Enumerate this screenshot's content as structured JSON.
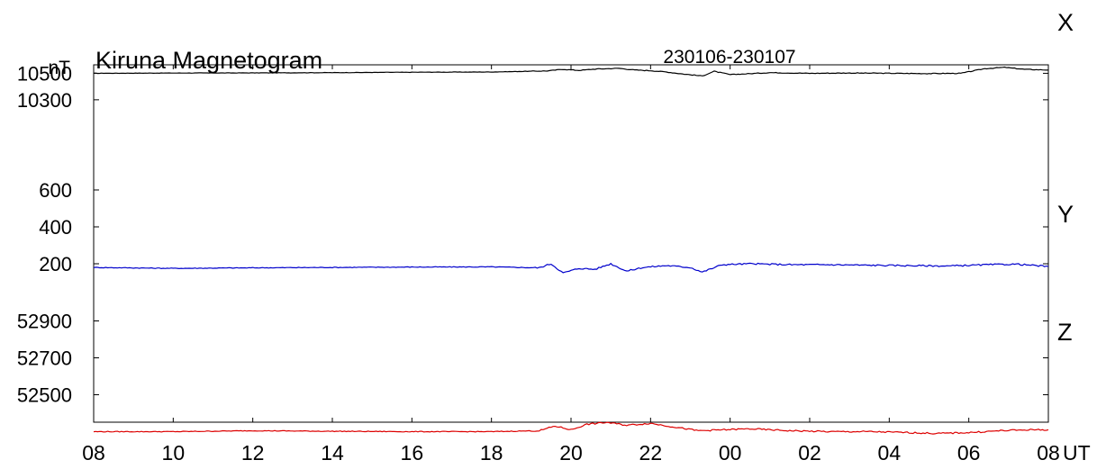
{
  "chart_data": {
    "type": "line",
    "title": "Kiruna Magnetogram",
    "date_range": "230106-230107",
    "unit_label": "nT",
    "x_unit_label": "UT",
    "x_tick_labels": [
      "08",
      "10",
      "12",
      "14",
      "16",
      "18",
      "20",
      "22",
      "00",
      "02",
      "04",
      "06",
      "08"
    ],
    "x_range_hours": [
      0,
      24
    ],
    "grid": false,
    "series": [
      {
        "name": "X",
        "color": "#000000",
        "tick_labels": [
          "10500",
          "10300"
        ],
        "tick_values": [
          10500,
          10300
        ],
        "ylim": [
          10000,
          10700
        ],
        "points": [
          [
            0,
            10500
          ],
          [
            2,
            10502
          ],
          [
            4,
            10503
          ],
          [
            6,
            10505
          ],
          [
            8,
            10508
          ],
          [
            10,
            10510
          ],
          [
            11.4,
            10518
          ],
          [
            11.8,
            10530
          ],
          [
            12.2,
            10522
          ],
          [
            12.6,
            10532
          ],
          [
            13.2,
            10538
          ],
          [
            13.6,
            10525
          ],
          [
            14.0,
            10520
          ],
          [
            14.4,
            10510
          ],
          [
            14.8,
            10495
          ],
          [
            15.3,
            10480
          ],
          [
            15.6,
            10515
          ],
          [
            16.0,
            10490
          ],
          [
            17,
            10505
          ],
          [
            18,
            10500
          ],
          [
            19,
            10502
          ],
          [
            20,
            10500
          ],
          [
            21,
            10498
          ],
          [
            21.8,
            10500
          ],
          [
            22.4,
            10535
          ],
          [
            22.9,
            10545
          ],
          [
            23.4,
            10530
          ],
          [
            24,
            10525
          ]
        ]
      },
      {
        "name": "Y",
        "color": "#0000cc",
        "tick_labels": [
          "600",
          "400",
          "200"
        ],
        "tick_values": [
          600,
          400,
          200
        ],
        "ylim": [
          -200,
          800
        ],
        "points": [
          [
            0,
            180
          ],
          [
            2,
            175
          ],
          [
            4,
            178
          ],
          [
            6,
            180
          ],
          [
            8,
            182
          ],
          [
            10,
            183
          ],
          [
            11.2,
            178
          ],
          [
            11.5,
            200
          ],
          [
            11.8,
            150
          ],
          [
            12.2,
            175
          ],
          [
            12.6,
            170
          ],
          [
            13.0,
            200
          ],
          [
            13.4,
            160
          ],
          [
            13.8,
            180
          ],
          [
            14.4,
            190
          ],
          [
            15.0,
            180
          ],
          [
            15.3,
            155
          ],
          [
            15.8,
            195
          ],
          [
            16.5,
            200
          ],
          [
            17.5,
            195
          ],
          [
            18.5,
            195
          ],
          [
            19.5,
            192
          ],
          [
            20.5,
            190
          ],
          [
            21.5,
            188
          ],
          [
            22.5,
            195
          ],
          [
            23.2,
            198
          ],
          [
            24,
            185
          ]
        ]
      },
      {
        "name": "Z",
        "color": "#dd0000",
        "tick_labels": [
          "52900",
          "52700",
          "52500"
        ],
        "tick_values": [
          52900,
          52700,
          52500
        ],
        "ylim": [
          52200,
          53200
        ],
        "points": [
          [
            0,
            52300
          ],
          [
            2,
            52300
          ],
          [
            4,
            52305
          ],
          [
            6,
            52302
          ],
          [
            8,
            52300
          ],
          [
            10,
            52300
          ],
          [
            11.2,
            52305
          ],
          [
            11.6,
            52330
          ],
          [
            12.0,
            52310
          ],
          [
            12.4,
            52340
          ],
          [
            12.9,
            52350
          ],
          [
            13.4,
            52335
          ],
          [
            14.0,
            52345
          ],
          [
            14.6,
            52325
          ],
          [
            15.2,
            52305
          ],
          [
            15.8,
            52310
          ],
          [
            16.5,
            52315
          ],
          [
            17.5,
            52305
          ],
          [
            18.5,
            52300
          ],
          [
            19.5,
            52300
          ],
          [
            20.5,
            52295
          ],
          [
            21.2,
            52290
          ],
          [
            22.0,
            52295
          ],
          [
            22.8,
            52305
          ],
          [
            23.5,
            52310
          ],
          [
            24,
            52310
          ]
        ]
      }
    ]
  }
}
